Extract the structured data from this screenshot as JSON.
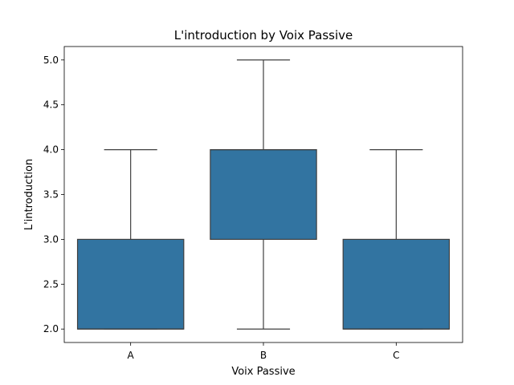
{
  "chart_data": {
    "type": "box",
    "title": "L'introduction by Voix Passive",
    "xlabel": "Voix Passive",
    "ylabel": "L'introduction",
    "ylim": [
      1.85,
      5.15
    ],
    "yticks": [
      2.0,
      2.5,
      3.0,
      3.5,
      4.0,
      4.5,
      5.0
    ],
    "ytick_labels": [
      "2.0",
      "2.5",
      "3.0",
      "3.5",
      "4.0",
      "4.5",
      "5.0"
    ],
    "categories": [
      "A",
      "B",
      "C"
    ],
    "boxes": [
      {
        "category": "A",
        "whisker_low": 2.0,
        "q1": 2.0,
        "median": 2.0,
        "q3": 3.0,
        "whisker_high": 4.0
      },
      {
        "category": "B",
        "whisker_low": 2.0,
        "q1": 3.0,
        "median": 4.0,
        "q3": 4.0,
        "whisker_high": 5.0
      },
      {
        "category": "C",
        "whisker_low": 2.0,
        "q1": 2.0,
        "median": 2.0,
        "q3": 3.0,
        "whisker_high": 4.0
      }
    ],
    "box_color": "#3274a1",
    "line_color": "#3f3f3f",
    "grid": false,
    "legend": "none"
  }
}
